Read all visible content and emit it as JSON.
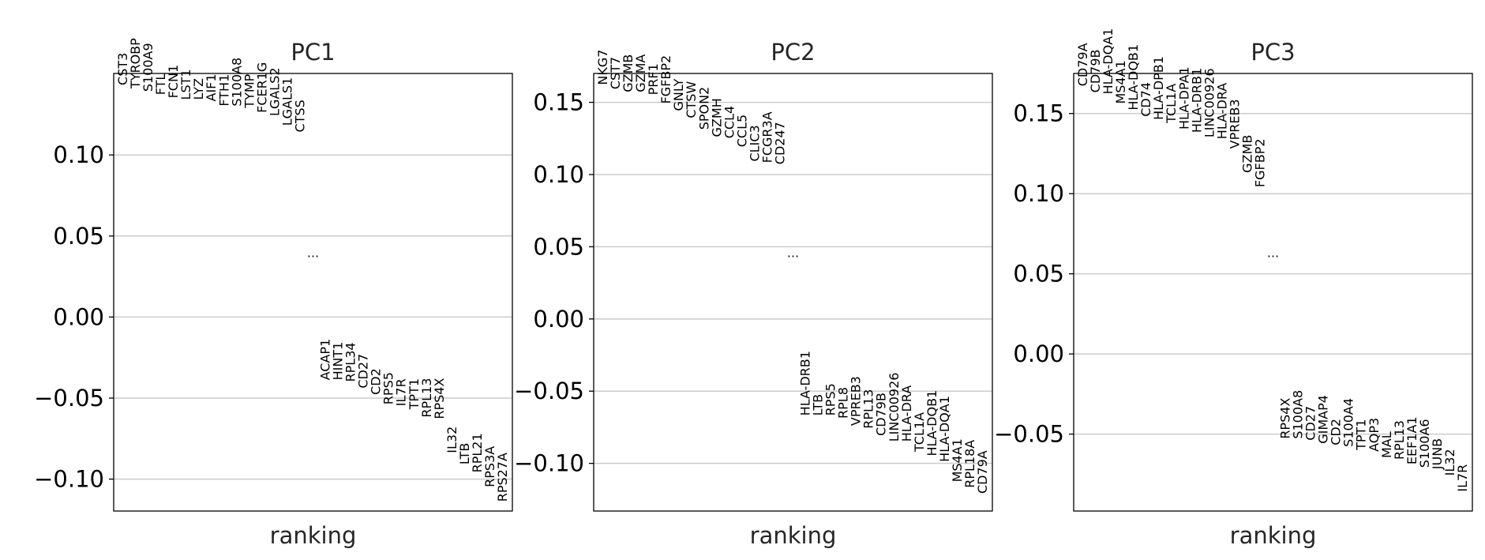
{
  "chart_data": [
    {
      "type": "scatter",
      "title": "PC1",
      "xlabel": "ranking",
      "ylabel": "",
      "grid": true,
      "ylim": [
        -0.1197,
        0.1503
      ],
      "yticks": [
        0.1,
        0.05,
        0.0,
        -0.05,
        -0.1
      ],
      "ytick_labels": [
        "0.10",
        "0.05",
        "0.00",
        "−0.05",
        "−0.10"
      ],
      "ellipsis": "...",
      "top_genes": [
        "CST3",
        "TYROBP",
        "S100A9",
        "FTL",
        "FCN1",
        "LST1",
        "LYZ",
        "AIF1",
        "FTH1",
        "S100A8",
        "TYMP",
        "FCER1G",
        "LGALS2",
        "LGALS1",
        "CTSS"
      ],
      "top_values": [
        0.143,
        0.141,
        0.139,
        0.137,
        0.135,
        0.134,
        0.134,
        0.133,
        0.13,
        0.13,
        0.129,
        0.126,
        0.124,
        0.118,
        0.114
      ],
      "bottom_genes": [
        "ACAP1",
        "HINT1",
        "RPL34",
        "CD27",
        "CD2",
        "RPS5",
        "IL7R",
        "TPT1",
        "RPL13",
        "RPS4X",
        "IL32",
        "LTB",
        "RPL21",
        "RPS3A",
        "RPS27A"
      ],
      "bottom_values": [
        -0.039,
        -0.039,
        -0.04,
        -0.044,
        -0.048,
        -0.054,
        -0.055,
        -0.057,
        -0.062,
        -0.063,
        -0.084,
        -0.091,
        -0.096,
        -0.105,
        -0.114
      ]
    },
    {
      "type": "scatter",
      "title": "PC2",
      "xlabel": "ranking",
      "ylabel": "",
      "grid": true,
      "ylim": [
        -0.133,
        0.17
      ],
      "yticks": [
        0.15,
        0.1,
        0.05,
        0.0,
        -0.05,
        -0.1
      ],
      "ytick_labels": [
        "0.15",
        "0.10",
        "0.05",
        "0.00",
        "−0.05",
        "−0.10"
      ],
      "ellipsis": "...",
      "top_genes": [
        "NKG7",
        "CST7",
        "GZMB",
        "GZMA",
        "PRF1",
        "FGFBP2",
        "GNLY",
        "CTSW",
        "SPON2",
        "GZMH",
        "CCL4",
        "CCL5",
        "CLIC3",
        "FCGR3A",
        "CD247"
      ],
      "top_values": [
        0.162,
        0.159,
        0.157,
        0.157,
        0.155,
        0.149,
        0.144,
        0.139,
        0.131,
        0.126,
        0.125,
        0.119,
        0.109,
        0.108,
        0.107
      ],
      "bottom_genes": [
        "HLA-DRB1",
        "LTB",
        "RPS5",
        "RPL8",
        "VPREB3",
        "RPL13",
        "CD79B",
        "LINC00926",
        "HLA-DRA",
        "TCL1A",
        "HLA-DQB1",
        "HLA-DQA1",
        "MS4A1",
        "RPL18A",
        "CD79A"
      ],
      "bottom_values": [
        -0.067,
        -0.067,
        -0.067,
        -0.069,
        -0.074,
        -0.076,
        -0.081,
        -0.085,
        -0.085,
        -0.092,
        -0.095,
        -0.099,
        -0.113,
        -0.117,
        -0.121
      ]
    },
    {
      "type": "scatter",
      "title": "PC3",
      "xlabel": "ranking",
      "ylabel": "",
      "grid": true,
      "ylim": [
        -0.098,
        0.175
      ],
      "yticks": [
        0.15,
        0.1,
        0.05,
        0.0,
        -0.05
      ],
      "ytick_labels": [
        "0.15",
        "0.10",
        "0.05",
        "0.00",
        "−0.05"
      ],
      "ellipsis": "...",
      "top_genes": [
        "CD79A",
        "CD79B",
        "HLA-DQA1",
        "MS4A1",
        "HLA-DQB1",
        "CD74",
        "HLA-DPB1",
        "TCL1A",
        "HLA-DPA1",
        "HLA-DRB1",
        "LINC00926",
        "HLA-DRA",
        "VPREB3",
        "GZMB",
        "FGFBP2"
      ],
      "top_values": [
        0.167,
        0.163,
        0.162,
        0.156,
        0.152,
        0.148,
        0.146,
        0.144,
        0.14,
        0.138,
        0.135,
        0.134,
        0.128,
        0.113,
        0.104
      ],
      "bottom_genes": [
        "RPS4X",
        "S100A8",
        "CD27",
        "GIMAP4",
        "CD2",
        "S100A4",
        "TPT1",
        "AQP3",
        "MAL",
        "RPL13",
        "EEF1A1",
        "S100A6",
        "JUNB",
        "IL32",
        "IL7R"
      ],
      "bottom_values": [
        -0.053,
        -0.053,
        -0.054,
        -0.056,
        -0.057,
        -0.058,
        -0.06,
        -0.061,
        -0.065,
        -0.066,
        -0.069,
        -0.071,
        -0.072,
        -0.076,
        -0.086
      ]
    }
  ]
}
